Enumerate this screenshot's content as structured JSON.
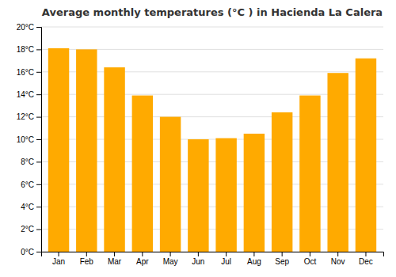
{
  "chart_data": {
    "type": "bar",
    "title": "Average monthly temperatures (°C ) in Hacienda La Calera",
    "categories": [
      "Jan",
      "Feb",
      "Mar",
      "Apr",
      "May",
      "Jun",
      "Jul",
      "Aug",
      "Sep",
      "Oct",
      "Nov",
      "Dec"
    ],
    "values": [
      18.1,
      18.0,
      16.4,
      13.9,
      12.0,
      10.0,
      10.1,
      10.5,
      12.4,
      13.9,
      15.9,
      17.2
    ],
    "color": "#FFAA00",
    "ylim": [
      0,
      20
    ],
    "yticks": [
      {
        "value": 0,
        "label": "0°C"
      },
      {
        "value": 2,
        "label": "2°C"
      },
      {
        "value": 4,
        "label": "4°C"
      },
      {
        "value": 6,
        "label": "6°C"
      },
      {
        "value": 8,
        "label": "8°C"
      },
      {
        "value": 10,
        "label": "10°C"
      },
      {
        "value": 12,
        "label": "12°C"
      },
      {
        "value": 14,
        "label": "14°C"
      },
      {
        "value": 16,
        "label": "16°C"
      },
      {
        "value": 18,
        "label": "18°C"
      },
      {
        "value": 20,
        "label": "20°C"
      }
    ],
    "grid": true
  }
}
